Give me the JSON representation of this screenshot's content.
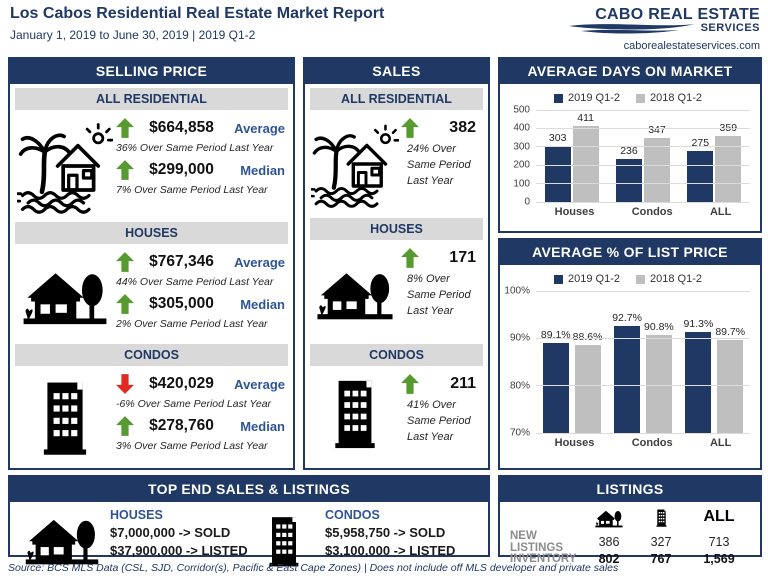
{
  "header": {
    "title": "Los Cabos Residential Real Estate Market Report",
    "subtitle": "January 1, 2019 to June 30, 2019 | 2019 Q1-2",
    "logo_line1": "CABO REAL ESTATE",
    "logo_line2": "SERVICES",
    "website": "caborealestateservices.com"
  },
  "colors": {
    "navy": "#1F3864",
    "blue_label": "#2F5496",
    "green": "#569A31",
    "red": "#E02B20",
    "bar_2019": "#1F3864",
    "bar_2018": "#BFBFBF",
    "subheader_bg": "#D9D9D9"
  },
  "selling_price": {
    "title": "SELLING PRICE",
    "sections": [
      {
        "label": "ALL RESIDENTIAL",
        "icon": "beach-house-icon",
        "stats": [
          {
            "direction": "up",
            "value": "$664,858",
            "kind": "Average",
            "note": "36% Over Same Period Last Year"
          },
          {
            "direction": "up",
            "value": "$299,000",
            "kind": "Median",
            "note": "7% Over Same Period Last Year"
          }
        ]
      },
      {
        "label": "HOUSES",
        "icon": "house-icon",
        "stats": [
          {
            "direction": "up",
            "value": "$767,346",
            "kind": "Average",
            "note": "44% Over Same Period Last Year"
          },
          {
            "direction": "up",
            "value": "$305,000",
            "kind": "Median",
            "note": "2% Over Same Period Last Year"
          }
        ]
      },
      {
        "label": "CONDOS",
        "icon": "building-icon",
        "stats": [
          {
            "direction": "down",
            "value": "$420,029",
            "kind": "Average",
            "note": "-6% Over Same Period Last Year"
          },
          {
            "direction": "up",
            "value": "$278,760",
            "kind": "Median",
            "note": "3% Over Same Period Last Year"
          }
        ]
      }
    ]
  },
  "sales": {
    "title": "SALES",
    "sections": [
      {
        "label": "ALL RESIDENTIAL",
        "icon": "beach-house-icon",
        "direction": "up",
        "value": "382",
        "note": "24% Over Same Period Last Year"
      },
      {
        "label": "HOUSES",
        "icon": "house-icon",
        "direction": "up",
        "value": "171",
        "note": "8% Over Same Period Last Year"
      },
      {
        "label": "CONDOS",
        "icon": "building-icon",
        "direction": "up",
        "value": "211",
        "note": "41% Over Same Period Last Year"
      }
    ]
  },
  "chart_data": [
    {
      "type": "bar",
      "title": "AVERAGE DAYS ON MARKET",
      "categories": [
        "Houses",
        "Condos",
        "ALL"
      ],
      "series": [
        {
          "name": "2019 Q1-2",
          "values": [
            303,
            236,
            275
          ]
        },
        {
          "name": "2018 Q1-2",
          "values": [
            411,
            347,
            359
          ]
        }
      ],
      "colors": [
        "#1F3864",
        "#BFBFBF"
      ],
      "ylim": [
        0,
        500
      ],
      "yticks": [
        0,
        100,
        200,
        300,
        400,
        500
      ],
      "percent": false,
      "grid": true,
      "legend_position": "top"
    },
    {
      "type": "bar",
      "title": "AVERAGE % OF LIST PRICE",
      "categories": [
        "Houses",
        "Condos",
        "ALL"
      ],
      "series": [
        {
          "name": "2019 Q1-2",
          "values": [
            89.1,
            92.7,
            91.3
          ]
        },
        {
          "name": "2018 Q1-2",
          "values": [
            88.6,
            90.8,
            89.7
          ]
        }
      ],
      "colors": [
        "#1F3864",
        "#BFBFBF"
      ],
      "ylim": [
        70,
        100
      ],
      "yticks": [
        70,
        80,
        90,
        100
      ],
      "percent": true,
      "grid": true,
      "legend_position": "top"
    }
  ],
  "top_end": {
    "title": "TOP END SALES & LISTINGS",
    "groups": [
      {
        "label": "HOUSES",
        "icon": "house-icon",
        "sold": "$7,000,000 -> SOLD",
        "listed": "$37,900,000 -> LISTED"
      },
      {
        "label": "CONDOS",
        "icon": "building-icon",
        "sold": "$5,958,750 -> SOLD",
        "listed": "$3,100,000 -> LISTED"
      }
    ]
  },
  "listings": {
    "title": "LISTINGS",
    "all_label": "ALL",
    "column_icons": [
      "house-icon",
      "building-icon"
    ],
    "rows": [
      {
        "label": "NEW LISTINGS",
        "values": [
          "386",
          "327",
          "713"
        ]
      },
      {
        "label": "INVENTORY",
        "values": [
          "802",
          "767",
          "1,569"
        ]
      }
    ]
  },
  "footer": {
    "source": "Source:  BCS MLS Data (CSL, SJD, Corridor(s), Pacific & East Cape Zones) | Does not include off MLS developer and private sales"
  }
}
